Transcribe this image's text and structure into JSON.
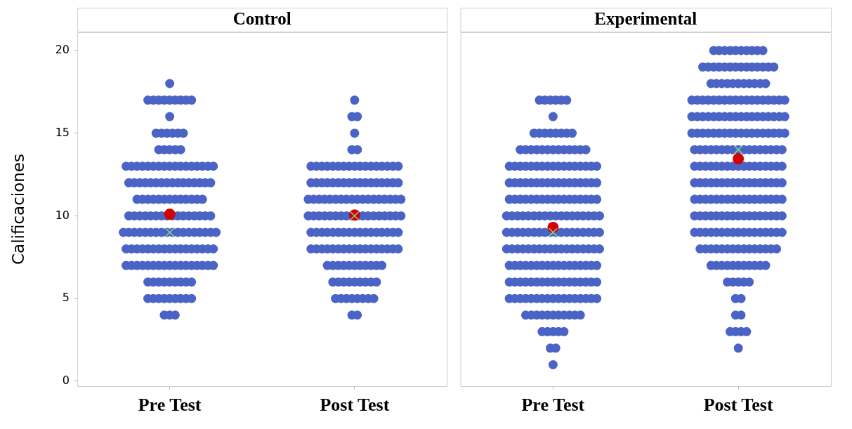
{
  "chart_data": [
    {
      "type": "scatter",
      "title": "Control",
      "ylabel": "Calificaciones",
      "categories": [
        "Pre Test",
        "Post Test"
      ],
      "ylim": [
        -0.3,
        21.1
      ],
      "yticks": [
        0,
        5,
        10,
        15,
        20
      ],
      "marker": "circle",
      "legend": false,
      "series": [
        {
          "color": "#4a63c5",
          "x": [
            "Pre Test",
            "Pre Test",
            "Pre Test",
            "Pre Test",
            "Pre Test",
            "Pre Test",
            "Pre Test",
            "Pre Test",
            "Pre Test",
            "Pre Test",
            "Pre Test",
            "Pre Test",
            "Pre Test",
            "Pre Test",
            "Pre Test",
            "Pre Test",
            "Pre Test",
            "Pre Test",
            "Pre Test",
            "Pre Test",
            "Pre Test",
            "Pre Test",
            "Pre Test",
            "Pre Test",
            "Pre Test",
            "Pre Test",
            "Pre Test",
            "Pre Test",
            "Pre Test",
            "Pre Test",
            "Pre Test",
            "Pre Test",
            "Pre Test",
            "Pre Test",
            "Pre Test",
            "Pre Test",
            "Pre Test",
            "Pre Test",
            "Pre Test",
            "Pre Test",
            "Pre Test",
            "Pre Test",
            "Pre Test",
            "Pre Test",
            "Pre Test",
            "Pre Test",
            "Pre Test",
            "Pre Test",
            "Pre Test",
            "Pre Test",
            "Pre Test",
            "Pre Test",
            "Pre Test",
            "Pre Test",
            "Pre Test",
            "Pre Test",
            "Pre Test",
            "Pre Test",
            "Pre Test",
            "Pre Test",
            "Pre Test",
            "Pre Test",
            "Pre Test",
            "Pre Test",
            "Pre Test",
            "Pre Test",
            "Pre Test",
            "Pre Test",
            "Pre Test",
            "Pre Test",
            "Pre Test",
            "Pre Test",
            "Pre Test",
            "Pre Test",
            "Pre Test",
            "Pre Test",
            "Pre Test",
            "Pre Test",
            "Pre Test",
            "Pre Test",
            "Pre Test",
            "Pre Test",
            "Pre Test",
            "Pre Test",
            "Pre Test",
            "Pre Test",
            "Pre Test",
            "Pre Test",
            "Pre Test",
            "Pre Test",
            "Pre Test",
            "Pre Test",
            "Pre Test",
            "Pre Test",
            "Pre Test",
            "Pre Test",
            "Pre Test",
            "Pre Test",
            "Pre Test",
            "Pre Test",
            "Pre Test",
            "Pre Test",
            "Pre Test",
            "Pre Test",
            "Pre Test",
            "Pre Test",
            "Pre Test",
            "Pre Test",
            "Pre Test",
            "Pre Test",
            "Pre Test",
            "Pre Test",
            "Pre Test",
            "Pre Test",
            "Pre Test",
            "Pre Test",
            "Pre Test",
            "Pre Test",
            "Pre Test",
            "Pre Test",
            "Pre Test",
            "Pre Test",
            "Pre Test",
            "Pre Test",
            "Pre Test",
            "Pre Test",
            "Pre Test",
            "Pre Test",
            "Pre Test",
            "Pre Test",
            "Pre Test",
            "Pre Test",
            "Pre Test",
            "Pre Test",
            "Pre Test",
            "Pre Test",
            "Pre Test",
            "Pre Test",
            "Pre Test",
            "Pre Test",
            "Pre Test",
            "Pre Test",
            "Pre Test",
            "Pre Test",
            "Pre Test",
            "Pre Test",
            "Pre Test",
            "Pre Test",
            "Pre Test",
            "Pre Test",
            "Pre Test",
            "Pre Test",
            "Pre Test",
            "Pre Test",
            "Pre Test",
            "Pre Test",
            "Pre Test",
            "Post Test",
            "Post Test",
            "Post Test",
            "Post Test",
            "Post Test",
            "Post Test",
            "Post Test",
            "Post Test",
            "Post Test",
            "Post Test",
            "Post Test",
            "Post Test",
            "Post Test",
            "Post Test",
            "Post Test",
            "Post Test",
            "Post Test",
            "Post Test",
            "Post Test",
            "Post Test",
            "Post Test",
            "Post Test",
            "Post Test",
            "Post Test",
            "Post Test",
            "Post Test",
            "Post Test",
            "Post Test",
            "Post Test",
            "Post Test",
            "Post Test",
            "Post Test",
            "Post Test",
            "Post Test",
            "Post Test",
            "Post Test",
            "Post Test",
            "Post Test",
            "Post Test",
            "Post Test",
            "Post Test",
            "Post Test",
            "Post Test",
            "Post Test",
            "Post Test",
            "Post Test",
            "Post Test",
            "Post Test",
            "Post Test",
            "Post Test",
            "Post Test",
            "Post Test",
            "Post Test",
            "Post Test",
            "Post Test",
            "Post Test",
            "Post Test",
            "Post Test",
            "Post Test",
            "Post Test",
            "Post Test",
            "Post Test",
            "Post Test",
            "Post Test",
            "Post Test",
            "Post Test",
            "Post Test",
            "Post Test",
            "Post Test",
            "Post Test",
            "Post Test",
            "Post Test",
            "Post Test",
            "Post Test",
            "Post Test",
            "Post Test",
            "Post Test",
            "Post Test",
            "Post Test",
            "Post Test",
            "Post Test",
            "Post Test",
            "Post Test",
            "Post Test",
            "Post Test",
            "Post Test",
            "Post Test",
            "Post Test",
            "Post Test",
            "Post Test",
            "Post Test",
            "Post Test",
            "Post Test",
            "Post Test",
            "Post Test",
            "Post Test",
            "Post Test",
            "Post Test",
            "Post Test",
            "Post Test",
            "Post Test",
            "Post Test",
            "Post Test",
            "Post Test",
            "Post Test",
            "Post Test",
            "Post Test",
            "Post Test",
            "Post Test",
            "Post Test",
            "Post Test",
            "Post Test",
            "Post Test",
            "Post Test",
            "Post Test",
            "Post Test",
            "Post Test",
            "Post Test",
            "Post Test",
            "Post Test",
            "Post Test",
            "Post Test",
            "Post Test",
            "Post Test",
            "Post Test",
            "Post Test",
            "Post Test",
            "Post Test",
            "Post Test",
            "Post Test",
            "Post Test",
            "Post Test",
            "Post Test",
            "Post Test",
            "Post Test",
            "Post Test",
            "Post Test",
            "Post Test",
            "Post Test",
            "Post Test"
          ],
          "values": [
            4,
            4,
            4,
            5,
            5,
            5,
            5,
            5,
            5,
            5,
            5,
            5,
            6,
            6,
            6,
            6,
            6,
            6,
            6,
            6,
            6,
            7,
            7,
            7,
            7,
            7,
            7,
            7,
            7,
            7,
            7,
            7,
            7,
            7,
            7,
            7,
            7,
            7,
            8,
            8,
            8,
            8,
            8,
            8,
            8,
            8,
            8,
            8,
            8,
            8,
            8,
            8,
            8,
            8,
            8,
            9,
            9,
            9,
            9,
            9,
            9,
            9,
            9,
            9,
            9,
            9,
            9,
            9,
            9,
            9,
            9,
            9,
            9,
            10,
            10,
            10,
            10,
            10,
            10,
            10,
            10,
            10,
            10,
            10,
            10,
            10,
            10,
            10,
            10,
            11,
            11,
            11,
            11,
            11,
            11,
            11,
            11,
            11,
            11,
            11,
            11,
            11,
            12,
            12,
            12,
            12,
            12,
            12,
            12,
            12,
            12,
            12,
            12,
            12,
            12,
            12,
            12,
            12,
            13,
            13,
            13,
            13,
            13,
            13,
            13,
            13,
            13,
            13,
            13,
            13,
            13,
            13,
            13,
            13,
            13,
            14,
            14,
            14,
            14,
            14,
            15,
            15,
            15,
            15,
            15,
            15,
            16,
            17,
            17,
            17,
            17,
            17,
            17,
            17,
            17,
            17,
            18,
            4,
            4,
            5,
            5,
            5,
            5,
            5,
            5,
            5,
            5,
            6,
            6,
            6,
            6,
            6,
            6,
            6,
            6,
            6,
            7,
            7,
            7,
            7,
            7,
            7,
            7,
            7,
            7,
            7,
            7,
            8,
            8,
            8,
            8,
            8,
            8,
            8,
            8,
            8,
            8,
            8,
            8,
            8,
            8,
            8,
            8,
            8,
            9,
            9,
            9,
            9,
            9,
            9,
            9,
            9,
            9,
            9,
            9,
            9,
            9,
            9,
            9,
            9,
            9,
            10,
            10,
            10,
            10,
            10,
            10,
            10,
            10,
            10,
            10,
            10,
            10,
            10,
            10,
            10,
            10,
            10,
            10,
            11,
            11,
            11,
            11,
            11,
            11,
            11,
            11,
            11,
            11,
            11,
            11,
            11,
            11,
            11,
            11,
            11,
            11,
            12,
            12,
            12,
            12,
            12,
            12,
            12,
            12,
            12,
            12,
            12,
            12,
            12,
            12,
            12,
            12,
            12,
            13,
            13,
            13,
            13,
            13,
            13,
            13,
            13,
            13,
            13,
            13,
            13,
            13,
            13,
            13,
            13,
            13,
            14,
            14,
            15,
            16,
            16,
            17
          ]
        },
        {
          "color": "#d40000",
          "x": [
            "Pre Test",
            "Post Test"
          ],
          "values": [
            10.1,
            10.05
          ]
        },
        {
          "color": "#7fd68a",
          "marker": "cross",
          "x": [
            "Pre Test",
            "Post Test"
          ],
          "values": [
            9,
            10
          ]
        }
      ]
    },
    {
      "type": "scatter",
      "title": "Experimental",
      "categories": [
        "Pre Test",
        "Post Test"
      ],
      "ylim": [
        -0.3,
        21.1
      ],
      "yticks": [
        0,
        5,
        10,
        15,
        20
      ],
      "tick_labels": "x",
      "marker": "circle",
      "legend": false,
      "series": [
        {
          "color": "#4a63c5",
          "x": [
            "Pre Test",
            "Pre Test",
            "Pre Test",
            "Pre Test",
            "Pre Test",
            "Pre Test",
            "Pre Test",
            "Pre Test",
            "Pre Test",
            "Pre Test",
            "Pre Test",
            "Pre Test",
            "Pre Test",
            "Pre Test",
            "Pre Test",
            "Pre Test",
            "Pre Test",
            "Pre Test",
            "Pre Test",
            "Pre Test",
            "Pre Test",
            "Pre Test",
            "Pre Test",
            "Pre Test",
            "Pre Test",
            "Pre Test",
            "Pre Test",
            "Pre Test",
            "Pre Test",
            "Pre Test",
            "Pre Test",
            "Pre Test",
            "Pre Test",
            "Pre Test",
            "Pre Test",
            "Pre Test",
            "Pre Test",
            "Pre Test",
            "Pre Test",
            "Pre Test",
            "Pre Test",
            "Pre Test",
            "Pre Test",
            "Pre Test",
            "Pre Test",
            "Pre Test",
            "Pre Test",
            "Pre Test",
            "Pre Test",
            "Pre Test",
            "Pre Test",
            "Pre Test",
            "Pre Test",
            "Pre Test",
            "Pre Test",
            "Pre Test",
            "Pre Test",
            "Pre Test",
            "Pre Test",
            "Pre Test",
            "Pre Test",
            "Pre Test",
            "Pre Test",
            "Pre Test",
            "Pre Test",
            "Pre Test",
            "Pre Test",
            "Pre Test",
            "Pre Test",
            "Pre Test",
            "Pre Test",
            "Pre Test",
            "Pre Test",
            "Pre Test",
            "Pre Test",
            "Pre Test",
            "Pre Test",
            "Pre Test",
            "Pre Test",
            "Pre Test",
            "Pre Test",
            "Pre Test",
            "Pre Test",
            "Pre Test",
            "Pre Test",
            "Pre Test",
            "Pre Test",
            "Pre Test",
            "Pre Test",
            "Pre Test",
            "Pre Test",
            "Pre Test",
            "Pre Test",
            "Pre Test",
            "Pre Test",
            "Pre Test",
            "Pre Test",
            "Pre Test",
            "Pre Test",
            "Pre Test",
            "Pre Test",
            "Pre Test",
            "Pre Test",
            "Pre Test",
            "Pre Test",
            "Pre Test",
            "Pre Test",
            "Pre Test",
            "Pre Test",
            "Pre Test",
            "Pre Test",
            "Pre Test",
            "Pre Test",
            "Pre Test",
            "Pre Test",
            "Pre Test",
            "Pre Test",
            "Pre Test",
            "Pre Test",
            "Pre Test",
            "Pre Test",
            "Pre Test",
            "Pre Test",
            "Pre Test",
            "Pre Test",
            "Pre Test",
            "Pre Test",
            "Pre Test",
            "Pre Test",
            "Pre Test",
            "Pre Test",
            "Pre Test",
            "Pre Test",
            "Pre Test",
            "Pre Test",
            "Pre Test",
            "Pre Test",
            "Pre Test",
            "Pre Test",
            "Pre Test",
            "Pre Test",
            "Pre Test",
            "Pre Test",
            "Pre Test",
            "Pre Test",
            "Pre Test",
            "Pre Test",
            "Pre Test",
            "Pre Test",
            "Pre Test",
            "Pre Test",
            "Pre Test",
            "Pre Test",
            "Pre Test",
            "Pre Test",
            "Pre Test",
            "Pre Test",
            "Pre Test",
            "Pre Test",
            "Pre Test",
            "Pre Test",
            "Pre Test",
            "Pre Test",
            "Pre Test",
            "Pre Test",
            "Pre Test",
            "Pre Test",
            "Pre Test",
            "Pre Test",
            "Pre Test",
            "Pre Test",
            "Pre Test",
            "Pre Test",
            "Pre Test",
            "Pre Test",
            "Pre Test",
            "Pre Test",
            "Pre Test",
            "Pre Test",
            "Pre Test",
            "Pre Test",
            "Pre Test",
            "Pre Test",
            "Pre Test",
            "Pre Test",
            "Pre Test",
            "Pre Test",
            "Pre Test",
            "Pre Test",
            "Pre Test",
            "Pre Test",
            "Pre Test",
            "Pre Test",
            "Pre Test",
            "Pre Test",
            "Pre Test",
            "Pre Test",
            "Pre Test",
            "Pre Test",
            "Pre Test",
            "Pre Test",
            "Pre Test",
            "Pre Test",
            "Post Test",
            "Post Test",
            "Post Test",
            "Post Test",
            "Post Test",
            "Post Test",
            "Post Test",
            "Post Test",
            "Post Test",
            "Post Test",
            "Post Test",
            "Post Test",
            "Post Test",
            "Post Test",
            "Post Test",
            "Post Test",
            "Post Test",
            "Post Test",
            "Post Test",
            "Post Test",
            "Post Test",
            "Post Test",
            "Post Test",
            "Post Test",
            "Post Test",
            "Post Test",
            "Post Test",
            "Post Test",
            "Post Test",
            "Post Test",
            "Post Test",
            "Post Test",
            "Post Test",
            "Post Test",
            "Post Test",
            "Post Test",
            "Post Test",
            "Post Test",
            "Post Test",
            "Post Test",
            "Post Test",
            "Post Test",
            "Post Test",
            "Post Test",
            "Post Test",
            "Post Test",
            "Post Test",
            "Post Test",
            "Post Test",
            "Post Test",
            "Post Test",
            "Post Test",
            "Post Test",
            "Post Test",
            "Post Test",
            "Post Test",
            "Post Test",
            "Post Test",
            "Post Test",
            "Post Test",
            "Post Test",
            "Post Test",
            "Post Test",
            "Post Test",
            "Post Test",
            "Post Test",
            "Post Test",
            "Post Test",
            "Post Test",
            "Post Test",
            "Post Test",
            "Post Test",
            "Post Test",
            "Post Test",
            "Post Test",
            "Post Test",
            "Post Test",
            "Post Test",
            "Post Test",
            "Post Test",
            "Post Test",
            "Post Test",
            "Post Test",
            "Post Test",
            "Post Test",
            "Post Test",
            "Post Test",
            "Post Test",
            "Post Test",
            "Post Test",
            "Post Test",
            "Post Test",
            "Post Test",
            "Post Test",
            "Post Test",
            "Post Test",
            "Post Test",
            "Post Test",
            "Post Test",
            "Post Test",
            "Post Test",
            "Post Test",
            "Post Test",
            "Post Test",
            "Post Test",
            "Post Test",
            "Post Test",
            "Post Test",
            "Post Test",
            "Post Test",
            "Post Test",
            "Post Test",
            "Post Test",
            "Post Test",
            "Post Test",
            "Post Test",
            "Post Test",
            "Post Test",
            "Post Test",
            "Post Test",
            "Post Test",
            "Post Test",
            "Post Test",
            "Post Test",
            "Post Test",
            "Post Test",
            "Post Test",
            "Post Test",
            "Post Test",
            "Post Test",
            "Post Test",
            "Post Test",
            "Post Test",
            "Post Test",
            "Post Test",
            "Post Test",
            "Post Test",
            "Post Test",
            "Post Test",
            "Post Test",
            "Post Test",
            "Post Test",
            "Post Test",
            "Post Test",
            "Post Test",
            "Post Test",
            "Post Test",
            "Post Test",
            "Post Test",
            "Post Test",
            "Post Test",
            "Post Test",
            "Post Test",
            "Post Test",
            "Post Test",
            "Post Test",
            "Post Test",
            "Post Test",
            "Post Test",
            "Post Test",
            "Post Test",
            "Post Test",
            "Post Test",
            "Post Test",
            "Post Test",
            "Post Test",
            "Post Test",
            "Post Test",
            "Post Test",
            "Post Test",
            "Post Test",
            "Post Test",
            "Post Test",
            "Post Test",
            "Post Test",
            "Post Test",
            "Post Test",
            "Post Test",
            "Post Test",
            "Post Test",
            "Post Test",
            "Post Test",
            "Post Test",
            "Post Test",
            "Post Test",
            "Post Test",
            "Post Test",
            "Post Test",
            "Post Test",
            "Post Test",
            "Post Test",
            "Post Test",
            "Post Test",
            "Post Test",
            "Post Test",
            "Post Test",
            "Post Test",
            "Post Test",
            "Post Test",
            "Post Test",
            "Post Test",
            "Post Test",
            "Post Test",
            "Post Test",
            "Post Test",
            "Post Test",
            "Post Test",
            "Post Test",
            "Post Test",
            "Post Test",
            "Post Test",
            "Post Test",
            "Post Test",
            "Post Test",
            "Post Test",
            "Post Test",
            "Post Test",
            "Post Test",
            "Post Test",
            "Post Test",
            "Post Test",
            "Post Test",
            "Post Test",
            "Post Test",
            "Post Test",
            "Post Test",
            "Post Test",
            "Post Test",
            "Post Test",
            "Post Test",
            "Post Test"
          ],
          "values": [
            1,
            2,
            2,
            3,
            3,
            3,
            3,
            3,
            4,
            4,
            4,
            4,
            4,
            4,
            4,
            4,
            4,
            4,
            4,
            5,
            5,
            5,
            5,
            5,
            5,
            5,
            5,
            5,
            5,
            5,
            5,
            5,
            5,
            5,
            5,
            5,
            6,
            6,
            6,
            6,
            6,
            6,
            6,
            6,
            6,
            6,
            6,
            6,
            6,
            6,
            6,
            6,
            6,
            7,
            7,
            7,
            7,
            7,
            7,
            7,
            7,
            7,
            7,
            7,
            7,
            7,
            7,
            7,
            7,
            7,
            8,
            8,
            8,
            8,
            8,
            8,
            8,
            8,
            8,
            8,
            8,
            8,
            8,
            8,
            8,
            8,
            8,
            8,
            9,
            9,
            9,
            9,
            9,
            9,
            9,
            9,
            9,
            9,
            9,
            9,
            9,
            9,
            9,
            9,
            9,
            9,
            10,
            10,
            10,
            10,
            10,
            10,
            10,
            10,
            10,
            10,
            10,
            10,
            10,
            10,
            10,
            10,
            10,
            10,
            11,
            11,
            11,
            11,
            11,
            11,
            11,
            11,
            11,
            11,
            11,
            11,
            11,
            11,
            11,
            11,
            11,
            12,
            12,
            12,
            12,
            12,
            12,
            12,
            12,
            12,
            12,
            12,
            12,
            12,
            12,
            12,
            12,
            12,
            13,
            13,
            13,
            13,
            13,
            13,
            13,
            13,
            13,
            13,
            13,
            13,
            13,
            13,
            13,
            13,
            13,
            14,
            14,
            14,
            14,
            14,
            14,
            14,
            14,
            14,
            14,
            14,
            14,
            14,
            15,
            15,
            15,
            15,
            15,
            15,
            15,
            15,
            16,
            17,
            17,
            17,
            17,
            17,
            17,
            2,
            3,
            3,
            3,
            3,
            4,
            4,
            5,
            5,
            6,
            6,
            6,
            6,
            6,
            7,
            7,
            7,
            7,
            7,
            7,
            7,
            7,
            7,
            7,
            7,
            8,
            8,
            8,
            8,
            8,
            8,
            8,
            8,
            8,
            8,
            8,
            8,
            8,
            8,
            8,
            9,
            9,
            9,
            9,
            9,
            9,
            9,
            9,
            9,
            9,
            9,
            9,
            9,
            9,
            9,
            9,
            9,
            10,
            10,
            10,
            10,
            10,
            10,
            10,
            10,
            10,
            10,
            10,
            10,
            10,
            10,
            10,
            10,
            10,
            11,
            11,
            11,
            11,
            11,
            11,
            11,
            11,
            11,
            11,
            11,
            11,
            11,
            11,
            11,
            11,
            11,
            12,
            12,
            12,
            12,
            12,
            12,
            12,
            12,
            12,
            12,
            12,
            12,
            12,
            12,
            12,
            12,
            12,
            13,
            13,
            13,
            13,
            13,
            13,
            13,
            13,
            13,
            13,
            13,
            13,
            13,
            13,
            13,
            13,
            13,
            14,
            14,
            14,
            14,
            14,
            14,
            14,
            14,
            14,
            14,
            14,
            14,
            14,
            14,
            14,
            14,
            14,
            15,
            15,
            15,
            15,
            15,
            15,
            15,
            15,
            15,
            15,
            15,
            15,
            15,
            15,
            15,
            15,
            15,
            15,
            16,
            16,
            16,
            16,
            16,
            16,
            16,
            16,
            16,
            16,
            16,
            16,
            16,
            16,
            16,
            16,
            16,
            16,
            17,
            17,
            17,
            17,
            17,
            17,
            17,
            17,
            17,
            17,
            17,
            17,
            17,
            17,
            17,
            17,
            17,
            17,
            18,
            18,
            18,
            18,
            18,
            18,
            18,
            18,
            18,
            18,
            18,
            19,
            19,
            19,
            19,
            19,
            19,
            19,
            19,
            19,
            19,
            19,
            19,
            19,
            19,
            20,
            20,
            20,
            20,
            20,
            20,
            20,
            20,
            20,
            20
          ]
        },
        {
          "color": "#d40000",
          "x": [
            "Pre Test",
            "Post Test"
          ],
          "values": [
            9.3,
            13.45
          ]
        },
        {
          "color": "#7fd68a",
          "marker": "cross",
          "x": [
            "Pre Test",
            "Post Test"
          ],
          "values": [
            9,
            14
          ]
        }
      ]
    }
  ]
}
